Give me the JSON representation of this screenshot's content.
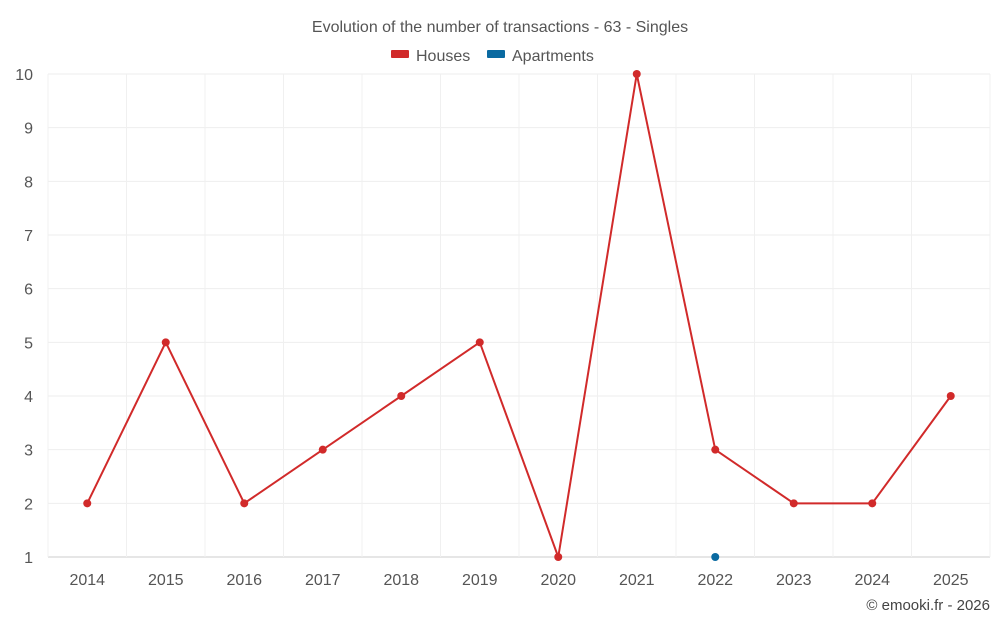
{
  "chart_data": {
    "type": "line",
    "title": "Evolution of the number of transactions - 63 - Singles",
    "categories": [
      "2014",
      "2015",
      "2016",
      "2017",
      "2018",
      "2019",
      "2020",
      "2021",
      "2022",
      "2023",
      "2024",
      "2025"
    ],
    "series": [
      {
        "name": "Houses",
        "color": "#d12a2a",
        "values": [
          2,
          5,
          2,
          3,
          4,
          5,
          1,
          10,
          3,
          2,
          2,
          4
        ]
      },
      {
        "name": "Apartments",
        "color": "#0a6aa1",
        "values": [
          null,
          null,
          null,
          null,
          null,
          null,
          null,
          null,
          1,
          null,
          null,
          null
        ]
      }
    ],
    "ylim": [
      1,
      10
    ],
    "yticks": [
      1,
      2,
      3,
      4,
      5,
      6,
      7,
      8,
      9,
      10
    ],
    "grid": true,
    "legend": "top-center",
    "credit": "© emooki.fr - 2026"
  }
}
